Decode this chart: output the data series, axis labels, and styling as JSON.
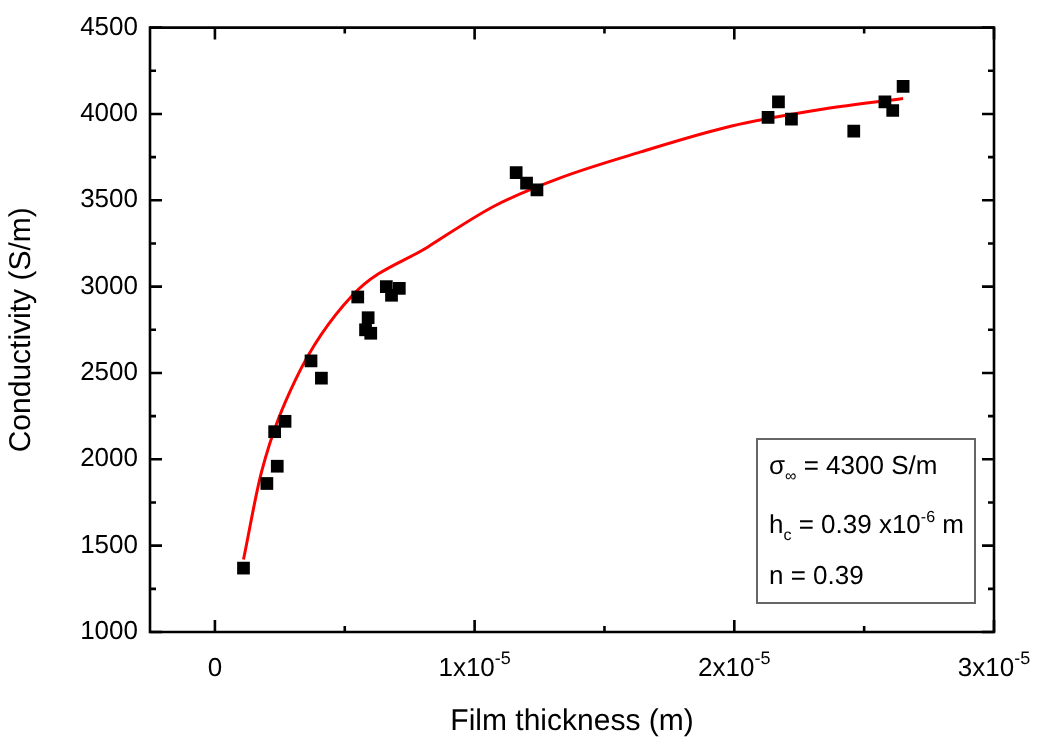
{
  "chart_data": {
    "type": "scatter",
    "xlabel": "Film thickness (m)",
    "ylabel": "Conductivity (S/m)",
    "xlim": [
      -2.5e-06,
      3e-05
    ],
    "ylim": [
      1000,
      4500
    ],
    "xticks": [
      {
        "value": 0,
        "label": "0"
      },
      {
        "value": 5e-06,
        "label": null
      },
      {
        "value": 1e-05,
        "label": "1x10$^{-5}$"
      },
      {
        "value": 1.5e-05,
        "label": null
      },
      {
        "value": 2e-05,
        "label": "2x10$^{-5}$"
      },
      {
        "value": 2.5e-05,
        "label": null
      },
      {
        "value": 3e-05,
        "label": "3x10$^{-5}$"
      }
    ],
    "yticks": [
      1000,
      {
        "value": 1250,
        "label": null
      },
      1500,
      {
        "value": 1750,
        "label": null
      },
      2000,
      {
        "value": 2250,
        "label": null
      },
      2500,
      {
        "value": 2750,
        "label": null
      },
      3000,
      {
        "value": 3250,
        "label": null
      },
      3500,
      {
        "value": 3750,
        "label": null
      },
      4000,
      {
        "value": 4250,
        "label": null
      },
      4500
    ],
    "series": [
      {
        "marker": "square",
        "color": "#000000",
        "x": [
          1.1e-06,
          2e-06,
          2.4e-06,
          2.3e-06,
          2.7e-06,
          3.7e-06,
          4.1e-06,
          5.5e-06,
          5.9e-06,
          5.8e-06,
          6e-06,
          6.6e-06,
          6.8e-06,
          7.1e-06,
          1.16e-05,
          1.2e-05,
          1.24e-05,
          2.13e-05,
          2.17e-05,
          2.22e-05,
          2.46e-05,
          2.58e-05,
          2.61e-05,
          2.65e-05
        ],
        "values": [
          1370,
          1860,
          1960,
          2160,
          2220,
          2570,
          2470,
          2940,
          2820,
          2750,
          2730,
          3000,
          2950,
          2990,
          3660,
          3600,
          3560,
          3980,
          4070,
          3970,
          3900,
          4070,
          4020,
          4160
        ]
      },
      {
        "type": "line",
        "marker": "none",
        "color": "#ff0000",
        "x": [
          1.1e-06,
          1.8e-06,
          3.1e-06,
          5.3e-06,
          8.2e-06,
          1.08e-05,
          1.33e-05,
          1.64e-05,
          1.99e-05,
          2.35e-05,
          2.65e-05
        ],
        "values": [
          1420,
          1930,
          2460,
          2950,
          3230,
          3470,
          3630,
          3780,
          3930,
          4030,
          4090
        ]
      }
    ],
    "annotations": [
      "σ$_{∞}$ = 4300 S/m",
      "h$_{c}$ = 0.39 x10$^{-6}$ m",
      "n = 0.39"
    ]
  }
}
